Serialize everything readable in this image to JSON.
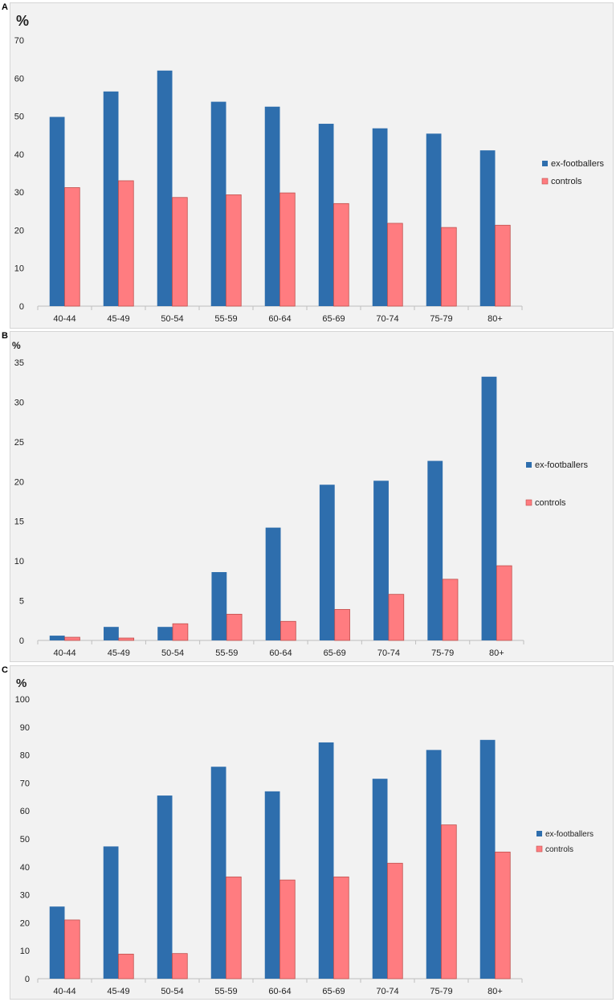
{
  "colors": {
    "ex_footballers": "#2e6ead",
    "controls": "#ff7c80",
    "controls_edge": "#c0504d",
    "background": "#f2f2f2",
    "axis": "#bfbfbf"
  },
  "chart_data": [
    {
      "panel": "A",
      "type": "bar",
      "ylabel": "%",
      "categories": [
        "40-44",
        "45-49",
        "50-54",
        "55-59",
        "60-64",
        "65-69",
        "70-74",
        "75-79",
        "80+"
      ],
      "yticks": [
        "70",
        "60",
        "50",
        "40",
        "30",
        "20",
        "10",
        "0"
      ],
      "ylim": [
        0,
        70
      ],
      "series": [
        {
          "name": "ex-footballers",
          "values": [
            49.8,
            56.5,
            62.0,
            53.8,
            52.5,
            48.0,
            46.8,
            45.4,
            41.0
          ]
        },
        {
          "name": "controls",
          "values": [
            31.2,
            33.0,
            28.6,
            29.3,
            29.8,
            27.0,
            21.8,
            20.7,
            21.3
          ]
        }
      ],
      "legend_position": "right"
    },
    {
      "panel": "B",
      "type": "bar",
      "ylabel": "%",
      "categories": [
        "40-44",
        "45-49",
        "50-54",
        "55-59",
        "60-64",
        "65-69",
        "70-74",
        "75-79",
        "80+"
      ],
      "yticks": [
        "35",
        "30",
        "25",
        "20",
        "15",
        "10",
        "5",
        "0"
      ],
      "ylim": [
        0,
        35
      ],
      "series": [
        {
          "name": "ex-footballers",
          "values": [
            0.6,
            1.7,
            1.7,
            8.6,
            14.2,
            19.6,
            20.1,
            22.6,
            33.2
          ]
        },
        {
          "name": "controls",
          "values": [
            0.4,
            0.3,
            2.1,
            3.3,
            2.4,
            3.9,
            5.8,
            7.7,
            9.4
          ]
        }
      ],
      "legend_position": "right"
    },
    {
      "panel": "C",
      "type": "bar",
      "ylabel": "%",
      "categories": [
        "40-44",
        "45-49",
        "50-54",
        "55-59",
        "60-64",
        "65-69",
        "70-74",
        "75-79",
        "80+"
      ],
      "yticks": [
        "100",
        "90",
        "80",
        "70",
        "60",
        "50",
        "40",
        "30",
        "20",
        "10",
        "0"
      ],
      "ylim": [
        0,
        100
      ],
      "series": [
        {
          "name": "ex-footballers",
          "values": [
            25.8,
            47.3,
            65.5,
            75.8,
            67.0,
            84.5,
            71.5,
            81.8,
            85.4
          ]
        },
        {
          "name": "controls",
          "values": [
            21.0,
            8.8,
            9.0,
            36.4,
            35.3,
            36.4,
            41.3,
            55.0,
            45.3
          ]
        }
      ],
      "legend_position": "right"
    }
  ]
}
